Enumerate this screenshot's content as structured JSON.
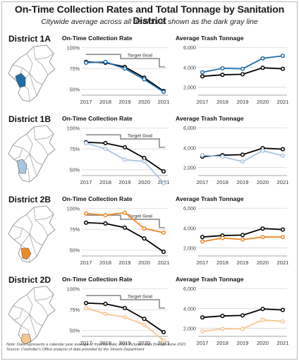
{
  "title": "On-Time Collection Rates and Total Tonnage by Sanitation District",
  "subtitle": "Citywide average across all districts is shown as the dark gray line",
  "target_label": "Target Goal",
  "notes": [
    "Note: Data represents a calendar year average of monthly data; 2021 includes data through June 2021",
    "Source: Controller's Office analysis of data provided by the Streets Department"
  ],
  "panel_titles": {
    "rate": "On-Time Collection Rate",
    "tonnage": "Average Trash Tonnage"
  },
  "colors": {
    "citywide": "#000000",
    "target": "#8c8c8c",
    "grid": "#d6d6d6",
    "map_outline": "#9a9a9a"
  },
  "chart_data": {
    "type": "line",
    "x": [
      "2017",
      "2018",
      "2019",
      "2020",
      "2021"
    ],
    "rate_axis": {
      "ticks": [
        "100%",
        "75%",
        "50%"
      ],
      "ylim": [
        0.43,
        1.04
      ]
    },
    "tonnage_axis": {
      "ticks": [
        "6,000",
        "4,000",
        "2,000"
      ],
      "ylim": [
        1200,
        6300
      ]
    },
    "target_goal": [
      0.92,
      0.92,
      0.87,
      0.87,
      0.77
    ],
    "citywide": {
      "rate": [
        0.83,
        0.82,
        0.77,
        0.64,
        0.48
      ],
      "tonnage": [
        3100,
        3250,
        3300,
        3950,
        3850
      ]
    },
    "districts": [
      {
        "name": "District 1A",
        "color": "#1f6fad",
        "rate": [
          0.82,
          0.83,
          0.75,
          0.62,
          0.47
        ],
        "tonnage": [
          3500,
          3900,
          3850,
          4900,
          5150
        ]
      },
      {
        "name": "District 1B",
        "color": "#a9c6e2",
        "rate": [
          0.82,
          0.75,
          0.62,
          0.6,
          0.34
        ],
        "tonnage": [
          3250,
          3100,
          2600,
          3700,
          3200
        ]
      },
      {
        "name": "District 2B",
        "color": "#ee8a2a",
        "rate": [
          0.94,
          0.92,
          0.95,
          0.76,
          0.71
        ],
        "tonnage": [
          2650,
          3000,
          2850,
          3100,
          3100
        ]
      },
      {
        "name": "District 2D",
        "color": "#f8c48e",
        "rate": [
          0.77,
          0.7,
          0.66,
          0.57,
          0.38
        ],
        "tonnage": [
          1700,
          1950,
          1950,
          2850,
          2700
        ]
      }
    ]
  }
}
